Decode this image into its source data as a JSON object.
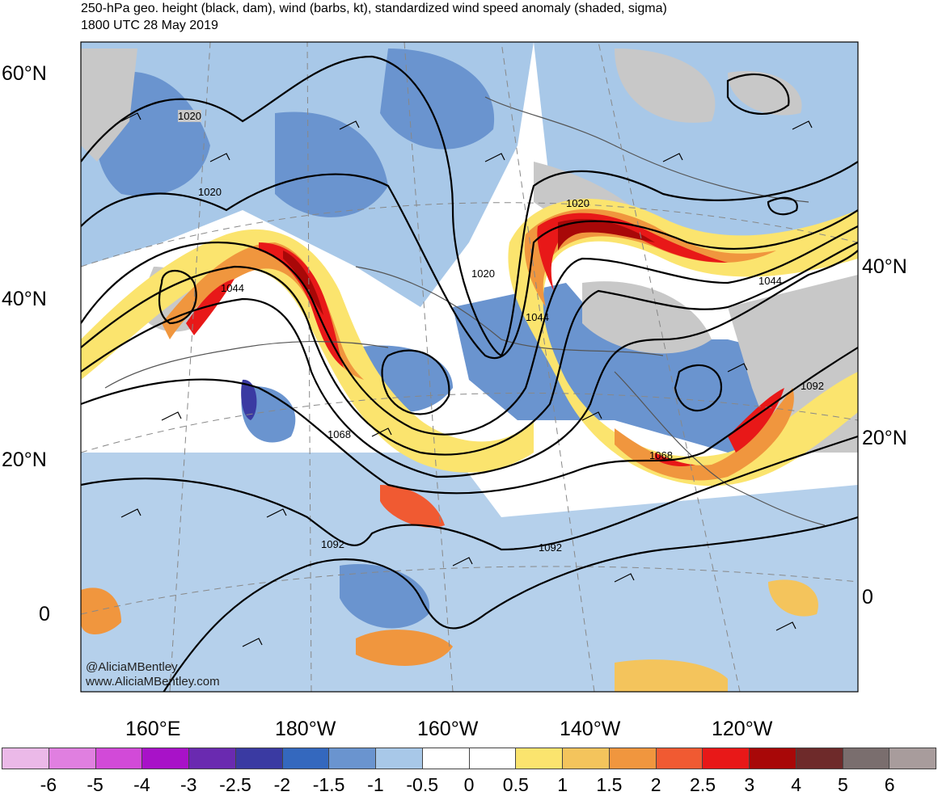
{
  "title_line1": "250-hPa geo. height (black, dam), wind (barbs, kt), standardized wind speed anomaly (shaded, sigma)",
  "title_line2": "1800 UTC 28 May 2019",
  "credit_line1": "@AliciaMBentley",
  "credit_line2": "www.AliciaMBentley.com",
  "lat_labels_left": [
    "60°N",
    "40°N",
    "20°N",
    "0"
  ],
  "lat_labels_right": [
    "40°N",
    "20°N",
    "0"
  ],
  "lon_labels": [
    "160°E",
    "180°W",
    "160°W",
    "140°W",
    "120°W"
  ],
  "contour_labels": [
    "1020",
    "1020",
    "1020",
    "1020",
    "1044",
    "1044",
    "1044",
    "1068",
    "1068",
    "1092",
    "1092",
    "1092"
  ],
  "colorbar": {
    "colors": [
      "#ebb9e8",
      "#e07fe0",
      "#d24ad8",
      "#a812c8",
      "#6a2ab0",
      "#3a3aa2",
      "#3468be",
      "#6a94cf",
      "#a8c8e8",
      "#ffffff",
      "#ffffff",
      "#fbe46e",
      "#f4c45c",
      "#f0963e",
      "#f05a32",
      "#e81818",
      "#a80808",
      "#6e2a2a",
      "#7a6e6e",
      "#a89c9c"
    ],
    "labels": [
      "-6",
      "-5",
      "-4",
      "-3",
      "-2.5",
      "-2",
      "-1.5",
      "-1",
      "-0.5",
      "0",
      "0.5",
      "1",
      "1.5",
      "2",
      "2.5",
      "3",
      "4",
      "5",
      "6"
    ]
  }
}
